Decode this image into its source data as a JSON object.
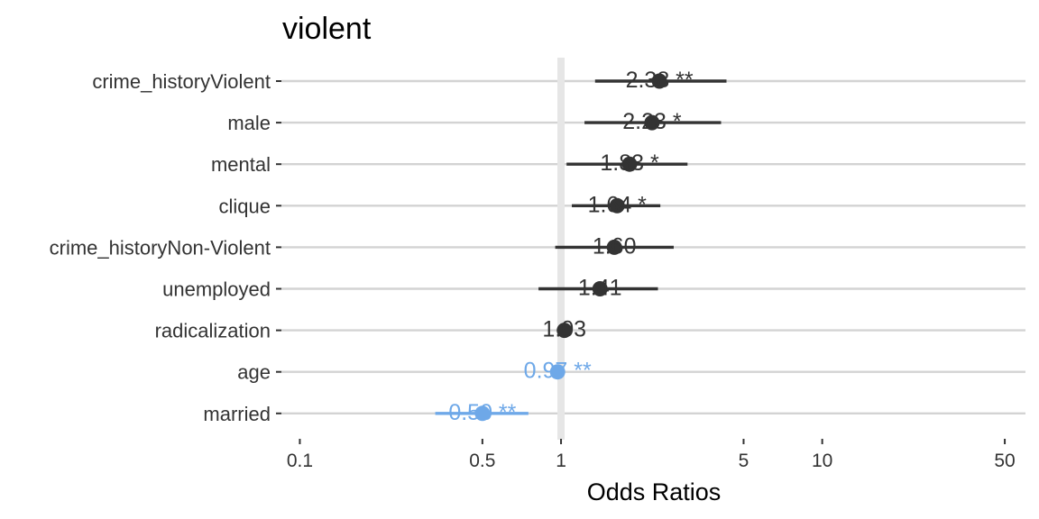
{
  "chart_data": {
    "type": "scatter",
    "title": "violent",
    "xlabel": "Odds Ratios",
    "ylabel": "",
    "x_scale": "log",
    "xlim": [
      0.085,
      60
    ],
    "x_ticks": [
      {
        "value": 0.1,
        "label": "0.1"
      },
      {
        "value": 0.5,
        "label": "0.5"
      },
      {
        "value": 1,
        "label": "1"
      },
      {
        "value": 5,
        "label": "5"
      },
      {
        "value": 10,
        "label": "10"
      },
      {
        "value": 50,
        "label": "50"
      }
    ],
    "reference_line": 1,
    "grid": true,
    "legend": "none",
    "colors": {
      "positive": "#333333",
      "negative": "#6ea8e8",
      "reference": "#e6e6e6",
      "grid": "#d3d3d3"
    },
    "terms": [
      {
        "term": "crime_historyViolent",
        "estimate": 2.38,
        "ci_low": 1.35,
        "ci_high": 4.3,
        "label": "2.38 **",
        "direction": "positive"
      },
      {
        "term": "male",
        "estimate": 2.23,
        "ci_low": 1.23,
        "ci_high": 4.1,
        "label": "2.23 *",
        "direction": "positive"
      },
      {
        "term": "mental",
        "estimate": 1.83,
        "ci_low": 1.05,
        "ci_high": 3.05,
        "label": "1.83 *",
        "direction": "positive"
      },
      {
        "term": "clique",
        "estimate": 1.64,
        "ci_low": 1.1,
        "ci_high": 2.4,
        "label": "1.64 *",
        "direction": "positive"
      },
      {
        "term": "crime_historyNon-Violent",
        "estimate": 1.6,
        "ci_low": 0.95,
        "ci_high": 2.7,
        "label": "1.60",
        "direction": "positive"
      },
      {
        "term": "unemployed",
        "estimate": 1.41,
        "ci_low": 0.82,
        "ci_high": 2.35,
        "label": "1.41",
        "direction": "positive"
      },
      {
        "term": "radicalization",
        "estimate": 1.03,
        "ci_low": 1.0,
        "ci_high": 1.06,
        "label": "1.03",
        "direction": "positive"
      },
      {
        "term": "age",
        "estimate": 0.97,
        "ci_low": 0.955,
        "ci_high": 0.985,
        "label": "0.97 **",
        "direction": "negative"
      },
      {
        "term": "married",
        "estimate": 0.5,
        "ci_low": 0.33,
        "ci_high": 0.75,
        "label": "0.50 **",
        "direction": "negative"
      }
    ]
  }
}
